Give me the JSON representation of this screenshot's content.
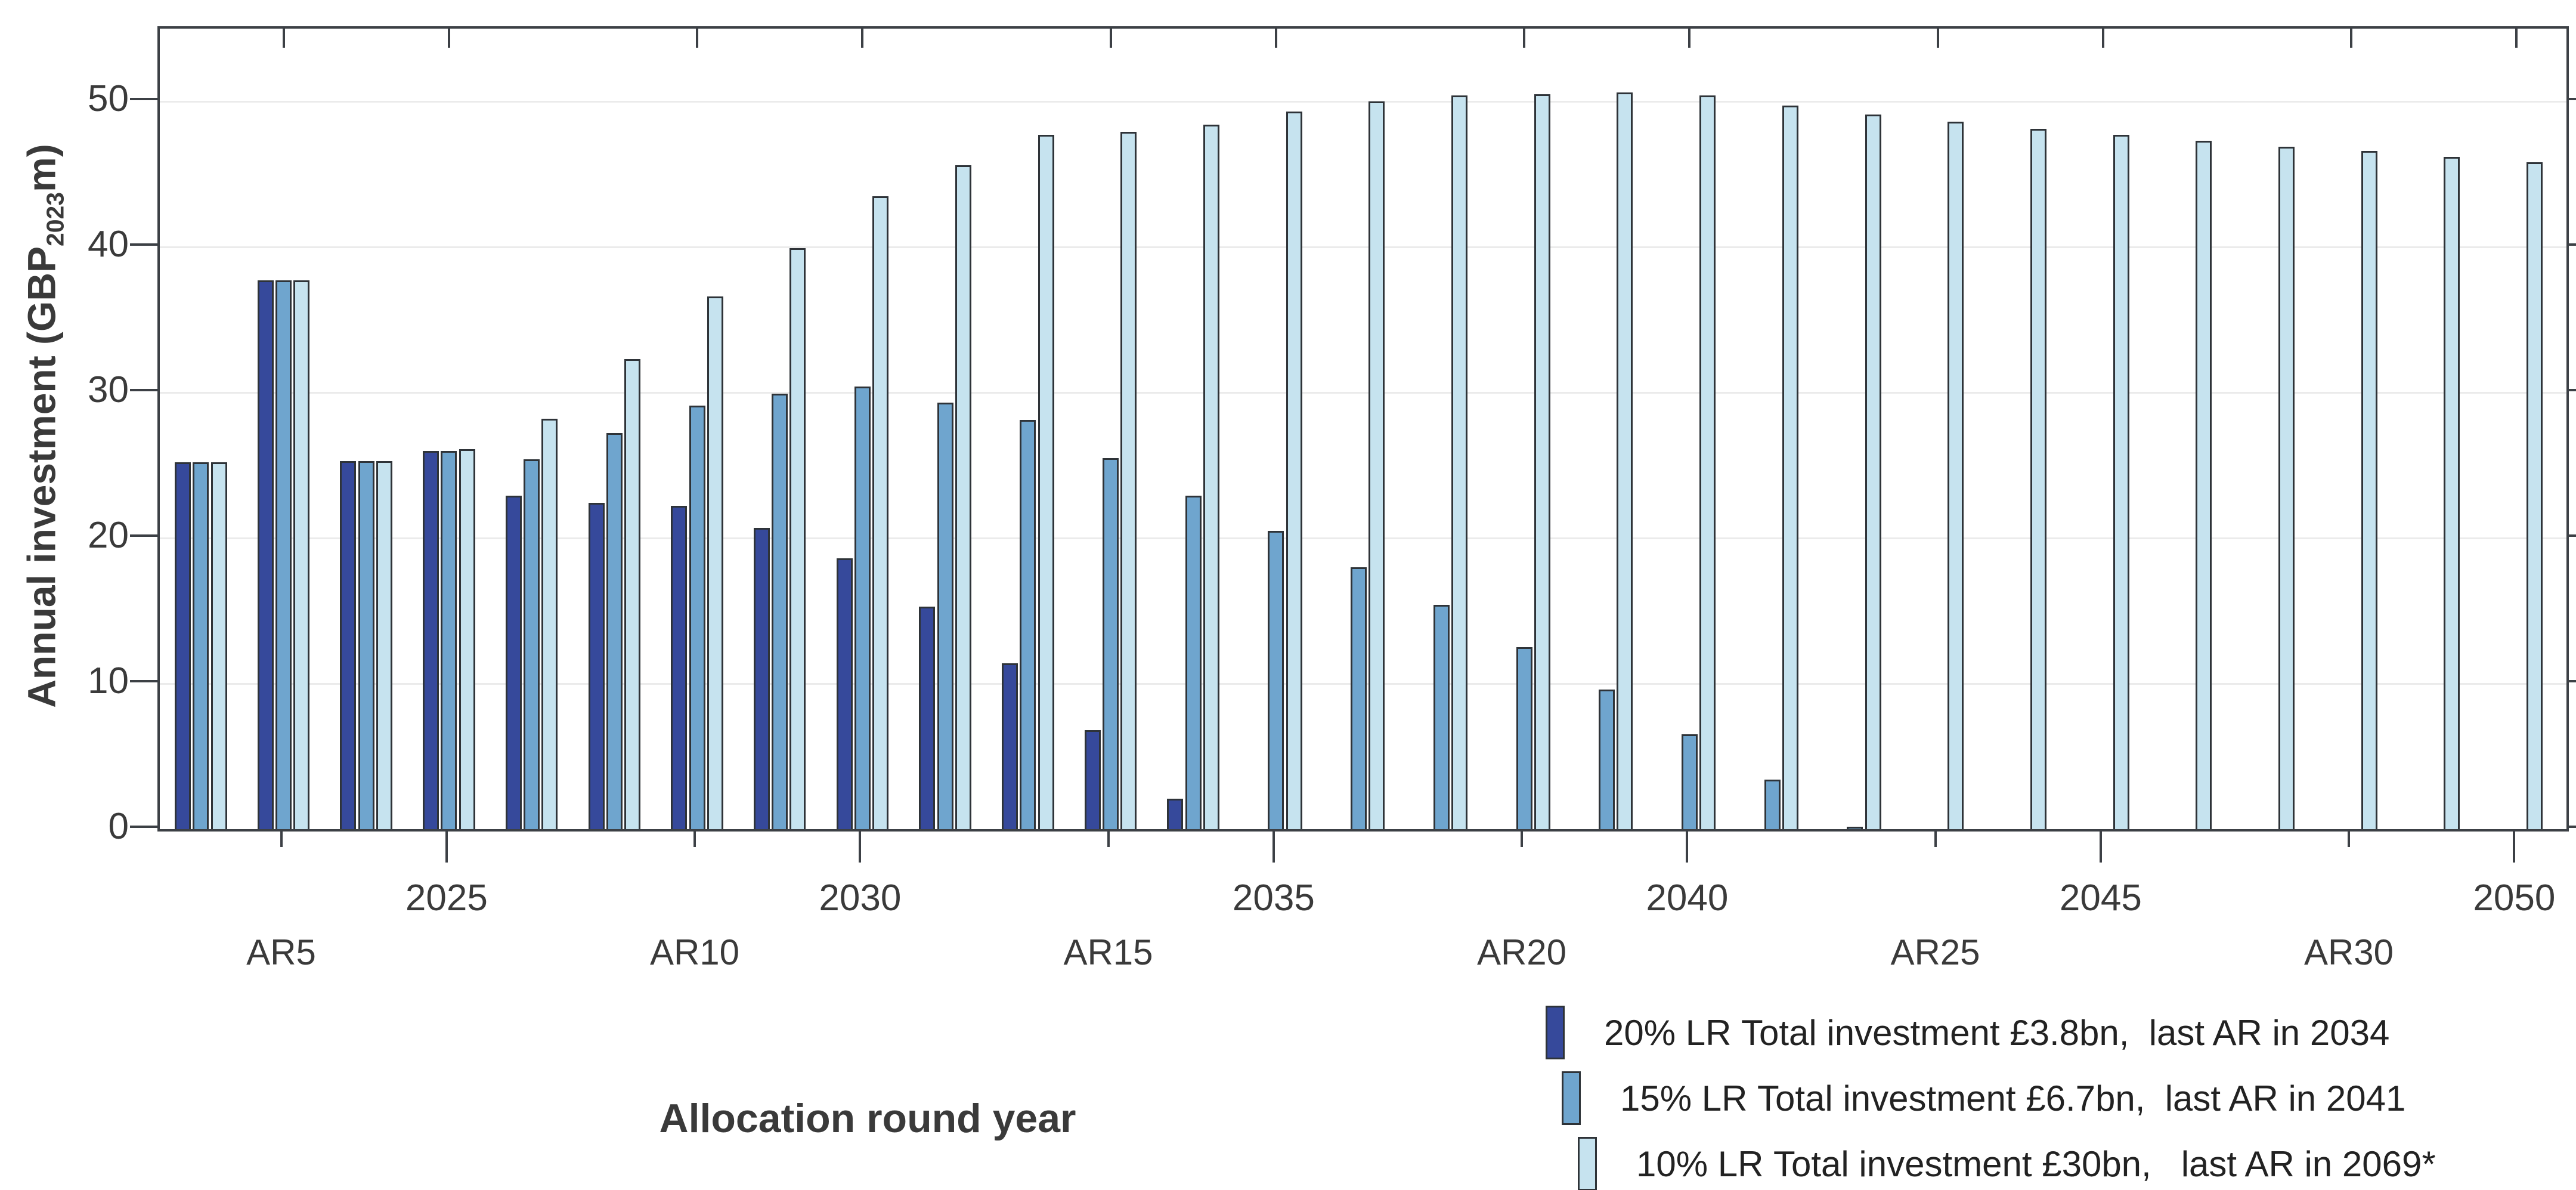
{
  "chart_data": {
    "type": "bar",
    "title": "",
    "xlabel": "Allocation round year",
    "ylabel": "Annual investment (GBP2023m)",
    "ylabel_parts": {
      "pre": "Annual investment (GBP",
      "sub": "2023",
      "post": "m)"
    },
    "ylim": [
      0,
      55
    ],
    "yticks": [
      0,
      10,
      20,
      30,
      40,
      50
    ],
    "grid": "horizontal",
    "legend_position": "bottom-right",
    "year_ticks": [
      2025,
      2030,
      2035,
      2040,
      2045,
      2050
    ],
    "ar_ticks": [
      {
        "label": "AR5",
        "year": 2023
      },
      {
        "label": "AR10",
        "year": 2028
      },
      {
        "label": "AR15",
        "year": 2033
      },
      {
        "label": "AR20",
        "year": 2038
      },
      {
        "label": "AR25",
        "year": 2043
      },
      {
        "label": "AR30",
        "year": 2048
      }
    ],
    "series": [
      {
        "name": "20% LR",
        "desc": "Total investment £3.8bn,  last AR in 2034",
        "color": "#36499b",
        "start_year": 2022,
        "values": [
          25.2,
          37.7,
          25.3,
          26.0,
          22.9,
          22.4,
          22.2,
          20.7,
          18.6,
          15.3,
          11.4,
          6.8,
          2.1
        ]
      },
      {
        "name": "15% LR",
        "desc": "Total investment £6.7bn,  last AR in 2041",
        "color": "#6fa5ce",
        "start_year": 2022,
        "values": [
          25.2,
          37.7,
          25.3,
          26.0,
          25.4,
          27.2,
          29.1,
          29.9,
          30.4,
          29.3,
          28.1,
          25.5,
          22.9,
          20.5,
          18.0,
          15.4,
          12.5,
          9.6,
          6.5,
          3.4,
          0.15
        ]
      },
      {
        "name": "10% LR",
        "desc": "Total investment £30bn,   last AR in 2069*",
        "color": "#c6e3ef",
        "start_year": 2022,
        "values": [
          25.2,
          37.7,
          25.3,
          26.1,
          28.2,
          32.3,
          36.6,
          39.9,
          43.5,
          45.6,
          47.7,
          47.9,
          48.4,
          49.3,
          50.0,
          50.4,
          50.5,
          50.6,
          50.4,
          49.7,
          49.1,
          48.6,
          48.1,
          47.7,
          47.3,
          46.9,
          46.6,
          46.2,
          45.8
        ]
      }
    ],
    "colors": {
      "bar_border": "#2e3338",
      "axis": "#3c4045",
      "gridline": "#ebebeb",
      "text": "#3a3a3a"
    }
  }
}
